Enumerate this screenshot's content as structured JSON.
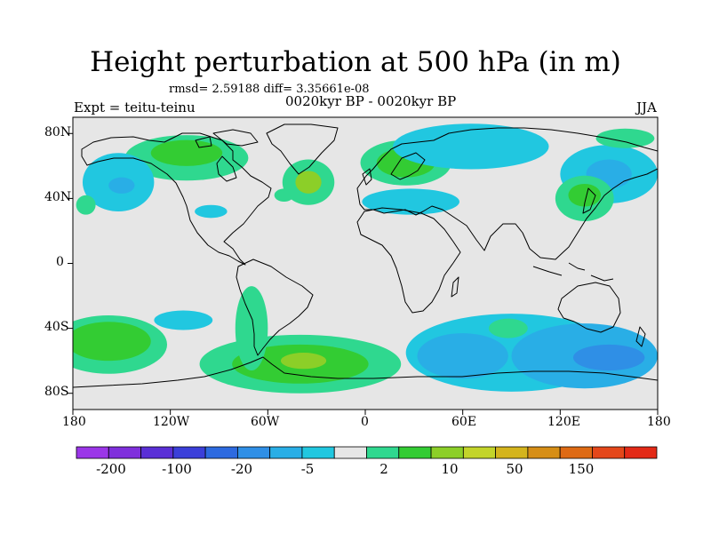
{
  "title": "Height perturbation at 500 hPa (in m)",
  "stats": "rmsd= 2.59188 diff= 3.35661e-08",
  "experiment": "Expt = teitu-teinu",
  "period": "0020kyr BP - 0020kyr BP",
  "season": "JJA",
  "map": {
    "ocean_color": "#e6e6e6",
    "lat_ticks": [
      "80N",
      "40N",
      "0",
      "40S",
      "80S"
    ],
    "lon_ticks": [
      "180",
      "120W",
      "60W",
      "0",
      "60E",
      "120E",
      "180"
    ]
  },
  "colorbar": {
    "colors": [
      "#9b36e8",
      "#7f2fdc",
      "#5a2fd6",
      "#3b3fd9",
      "#2d6ae0",
      "#2f8fe6",
      "#29aee6",
      "#21c7e0",
      "#e6e6e6",
      "#2fd88f",
      "#33cc33",
      "#8ccf28",
      "#c3d42a",
      "#d4b41c",
      "#d68e16",
      "#de6a14",
      "#e4471a",
      "#e32a17"
    ],
    "labels": [
      "-200",
      "-100",
      "-20",
      "-5",
      "2",
      "10",
      "50",
      "150"
    ]
  },
  "anomalies": [
    {
      "lon": -158,
      "lat": -50,
      "rx": 36,
      "ry": 18,
      "band": "positive",
      "color": "#2fd88f"
    },
    {
      "lon": -158,
      "lat": -48,
      "rx": 26,
      "ry": 12,
      "band": "positive",
      "color": "#33cc33"
    },
    {
      "lon": -40,
      "lat": -62,
      "rx": 62,
      "ry": 18,
      "band": "positive",
      "color": "#2fd88f"
    },
    {
      "lon": -40,
      "lat": -62,
      "rx": 42,
      "ry": 12,
      "band": "positive",
      "color": "#33cc33"
    },
    {
      "lon": -38,
      "lat": -60,
      "rx": 14,
      "ry": 5,
      "band": "positive",
      "color": "#8ccf28"
    },
    {
      "lon": -70,
      "lat": -40,
      "rx": 10,
      "ry": 26,
      "band": "positive",
      "color": "#2fd88f"
    },
    {
      "lon": 90,
      "lat": -55,
      "rx": 65,
      "ry": 24,
      "band": "negative",
      "color": "#21c7e0"
    },
    {
      "lon": 135,
      "lat": -57,
      "rx": 45,
      "ry": 20,
      "band": "negative",
      "color": "#29aee6"
    },
    {
      "lon": 150,
      "lat": -58,
      "rx": 22,
      "ry": 8,
      "band": "negative",
      "color": "#2f8fe6"
    },
    {
      "lon": 60,
      "lat": -57,
      "rx": 28,
      "ry": 14,
      "band": "negative",
      "color": "#29aee6"
    },
    {
      "lon": -112,
      "lat": -35,
      "rx": 18,
      "ry": 6,
      "band": "negative",
      "color": "#21c7e0"
    },
    {
      "lon": 88,
      "lat": -40,
      "rx": 12,
      "ry": 6,
      "band": "positive",
      "color": "#2fd88f"
    },
    {
      "lon": -110,
      "lat": 65,
      "rx": 38,
      "ry": 14,
      "band": "positive",
      "color": "#2fd88f"
    },
    {
      "lon": -110,
      "lat": 68,
      "rx": 22,
      "ry": 8,
      "band": "positive",
      "color": "#33cc33"
    },
    {
      "lon": -152,
      "lat": 50,
      "rx": 22,
      "ry": 18,
      "band": "negative",
      "color": "#21c7e0"
    },
    {
      "lon": -150,
      "lat": 48,
      "rx": 8,
      "ry": 5,
      "band": "negative",
      "color": "#29aee6"
    },
    {
      "lon": -35,
      "lat": 50,
      "rx": 16,
      "ry": 14,
      "band": "positive",
      "color": "#2fd88f"
    },
    {
      "lon": -35,
      "lat": 50,
      "rx": 8,
      "ry": 7,
      "band": "positive",
      "color": "#8ccf28"
    },
    {
      "lon": 25,
      "lat": 62,
      "rx": 28,
      "ry": 14,
      "band": "positive",
      "color": "#2fd88f"
    },
    {
      "lon": 25,
      "lat": 62,
      "rx": 18,
      "ry": 9,
      "band": "positive",
      "color": "#33cc33"
    },
    {
      "lon": 65,
      "lat": 72,
      "rx": 48,
      "ry": 14,
      "band": "negative",
      "color": "#21c7e0"
    },
    {
      "lon": 150,
      "lat": 55,
      "rx": 30,
      "ry": 18,
      "band": "negative",
      "color": "#21c7e0"
    },
    {
      "lon": 150,
      "lat": 55,
      "rx": 14,
      "ry": 9,
      "band": "negative",
      "color": "#29aee6"
    },
    {
      "lon": 135,
      "lat": 40,
      "rx": 18,
      "ry": 14,
      "band": "positive",
      "color": "#2fd88f"
    },
    {
      "lon": 135,
      "lat": 42,
      "rx": 10,
      "ry": 7,
      "band": "positive",
      "color": "#33cc33"
    },
    {
      "lon": 28,
      "lat": 38,
      "rx": 30,
      "ry": 8,
      "band": "negative",
      "color": "#21c7e0"
    },
    {
      "lon": -172,
      "lat": 36,
      "rx": 6,
      "ry": 6,
      "band": "positive",
      "color": "#2fd88f"
    },
    {
      "lon": -50,
      "lat": 42,
      "rx": 6,
      "ry": 4,
      "band": "positive",
      "color": "#2fd88f"
    },
    {
      "lon": -95,
      "lat": 32,
      "rx": 10,
      "ry": 4,
      "band": "negative",
      "color": "#21c7e0"
    },
    {
      "lon": 160,
      "lat": 77,
      "rx": 18,
      "ry": 6,
      "band": "positive",
      "color": "#2fd88f"
    }
  ]
}
